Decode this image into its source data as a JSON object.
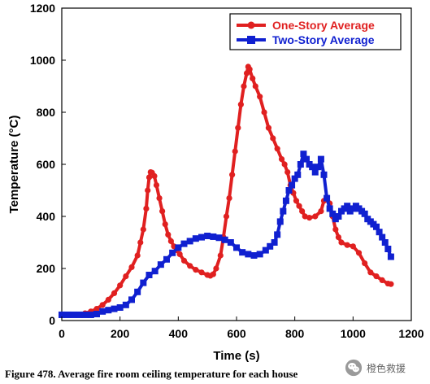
{
  "caption": "Figure 478.  Average fire room ceiling temperature for each house",
  "watermark": {
    "text": "橙色救援",
    "icon": "wechat-logo-icon"
  },
  "chart_data": {
    "type": "line",
    "title": "",
    "xlabel": "Time (s)",
    "ylabel": "Temperature (°C)",
    "xlim": [
      0,
      1200
    ],
    "ylim": [
      0,
      1200
    ],
    "xticks": [
      0,
      200,
      400,
      600,
      800,
      1000,
      1200
    ],
    "yticks": [
      0,
      200,
      400,
      600,
      800,
      1000,
      1200
    ],
    "grid": false,
    "legend_position": "top-right",
    "series": [
      {
        "name": "One-Story Average",
        "color": "#e02020",
        "marker": "circle",
        "points": [
          [
            0,
            22
          ],
          [
            20,
            22
          ],
          [
            40,
            22
          ],
          [
            60,
            23
          ],
          [
            80,
            28
          ],
          [
            100,
            35
          ],
          [
            120,
            45
          ],
          [
            140,
            60
          ],
          [
            160,
            80
          ],
          [
            180,
            105
          ],
          [
            200,
            135
          ],
          [
            220,
            170
          ],
          [
            240,
            205
          ],
          [
            260,
            250
          ],
          [
            270,
            300
          ],
          [
            280,
            350
          ],
          [
            290,
            430
          ],
          [
            295,
            500
          ],
          [
            300,
            550
          ],
          [
            305,
            570
          ],
          [
            310,
            568
          ],
          [
            318,
            555
          ],
          [
            325,
            520
          ],
          [
            335,
            470
          ],
          [
            345,
            420
          ],
          [
            355,
            370
          ],
          [
            365,
            330
          ],
          [
            375,
            305
          ],
          [
            385,
            285
          ],
          [
            395,
            270
          ],
          [
            405,
            255
          ],
          [
            420,
            230
          ],
          [
            440,
            210
          ],
          [
            460,
            195
          ],
          [
            480,
            185
          ],
          [
            500,
            175
          ],
          [
            510,
            172
          ],
          [
            520,
            178
          ],
          [
            530,
            200
          ],
          [
            545,
            250
          ],
          [
            555,
            320
          ],
          [
            565,
            400
          ],
          [
            575,
            470
          ],
          [
            585,
            560
          ],
          [
            595,
            650
          ],
          [
            605,
            740
          ],
          [
            615,
            830
          ],
          [
            625,
            900
          ],
          [
            635,
            950
          ],
          [
            640,
            975
          ],
          [
            645,
            965
          ],
          [
            655,
            930
          ],
          [
            665,
            900
          ],
          [
            680,
            860
          ],
          [
            695,
            800
          ],
          [
            710,
            740
          ],
          [
            725,
            700
          ],
          [
            740,
            660
          ],
          [
            755,
            620
          ],
          [
            765,
            600
          ],
          [
            775,
            570
          ],
          [
            785,
            520
          ],
          [
            795,
            490
          ],
          [
            805,
            460
          ],
          [
            815,
            440
          ],
          [
            825,
            420
          ],
          [
            835,
            400
          ],
          [
            850,
            395
          ],
          [
            870,
            400
          ],
          [
            890,
            420
          ],
          [
            900,
            460
          ],
          [
            910,
            470
          ],
          [
            920,
            450
          ],
          [
            930,
            400
          ],
          [
            940,
            350
          ],
          [
            950,
            320
          ],
          [
            960,
            300
          ],
          [
            980,
            290
          ],
          [
            1000,
            285
          ],
          [
            1020,
            260
          ],
          [
            1040,
            220
          ],
          [
            1060,
            185
          ],
          [
            1080,
            170
          ],
          [
            1100,
            155
          ],
          [
            1120,
            142
          ],
          [
            1130,
            140
          ]
        ]
      },
      {
        "name": "Two-Story Average",
        "color": "#1020d0",
        "marker": "square",
        "points": [
          [
            0,
            22
          ],
          [
            20,
            22
          ],
          [
            40,
            22
          ],
          [
            60,
            22
          ],
          [
            80,
            22
          ],
          [
            100,
            22
          ],
          [
            120,
            25
          ],
          [
            140,
            35
          ],
          [
            160,
            40
          ],
          [
            180,
            45
          ],
          [
            200,
            50
          ],
          [
            220,
            60
          ],
          [
            240,
            80
          ],
          [
            260,
            110
          ],
          [
            280,
            145
          ],
          [
            300,
            175
          ],
          [
            320,
            190
          ],
          [
            340,
            215
          ],
          [
            360,
            235
          ],
          [
            380,
            260
          ],
          [
            400,
            280
          ],
          [
            420,
            295
          ],
          [
            440,
            305
          ],
          [
            460,
            315
          ],
          [
            480,
            320
          ],
          [
            500,
            325
          ],
          [
            520,
            322
          ],
          [
            540,
            318
          ],
          [
            560,
            310
          ],
          [
            580,
            300
          ],
          [
            600,
            280
          ],
          [
            620,
            262
          ],
          [
            640,
            255
          ],
          [
            660,
            250
          ],
          [
            680,
            255
          ],
          [
            700,
            270
          ],
          [
            715,
            285
          ],
          [
            730,
            300
          ],
          [
            740,
            330
          ],
          [
            750,
            380
          ],
          [
            760,
            420
          ],
          [
            770,
            460
          ],
          [
            780,
            500
          ],
          [
            790,
            520
          ],
          [
            800,
            545
          ],
          [
            810,
            560
          ],
          [
            820,
            600
          ],
          [
            830,
            640
          ],
          [
            840,
            620
          ],
          [
            850,
            600
          ],
          [
            860,
            590
          ],
          [
            870,
            570
          ],
          [
            880,
            590
          ],
          [
            890,
            620
          ],
          [
            900,
            560
          ],
          [
            910,
            470
          ],
          [
            920,
            430
          ],
          [
            930,
            410
          ],
          [
            940,
            390
          ],
          [
            950,
            400
          ],
          [
            960,
            420
          ],
          [
            970,
            430
          ],
          [
            980,
            440
          ],
          [
            990,
            420
          ],
          [
            1000,
            430
          ],
          [
            1010,
            440
          ],
          [
            1020,
            430
          ],
          [
            1030,
            420
          ],
          [
            1040,
            410
          ],
          [
            1050,
            390
          ],
          [
            1060,
            380
          ],
          [
            1070,
            370
          ],
          [
            1080,
            360
          ],
          [
            1090,
            340
          ],
          [
            1100,
            320
          ],
          [
            1110,
            300
          ],
          [
            1120,
            275
          ],
          [
            1130,
            245
          ]
        ]
      }
    ]
  }
}
